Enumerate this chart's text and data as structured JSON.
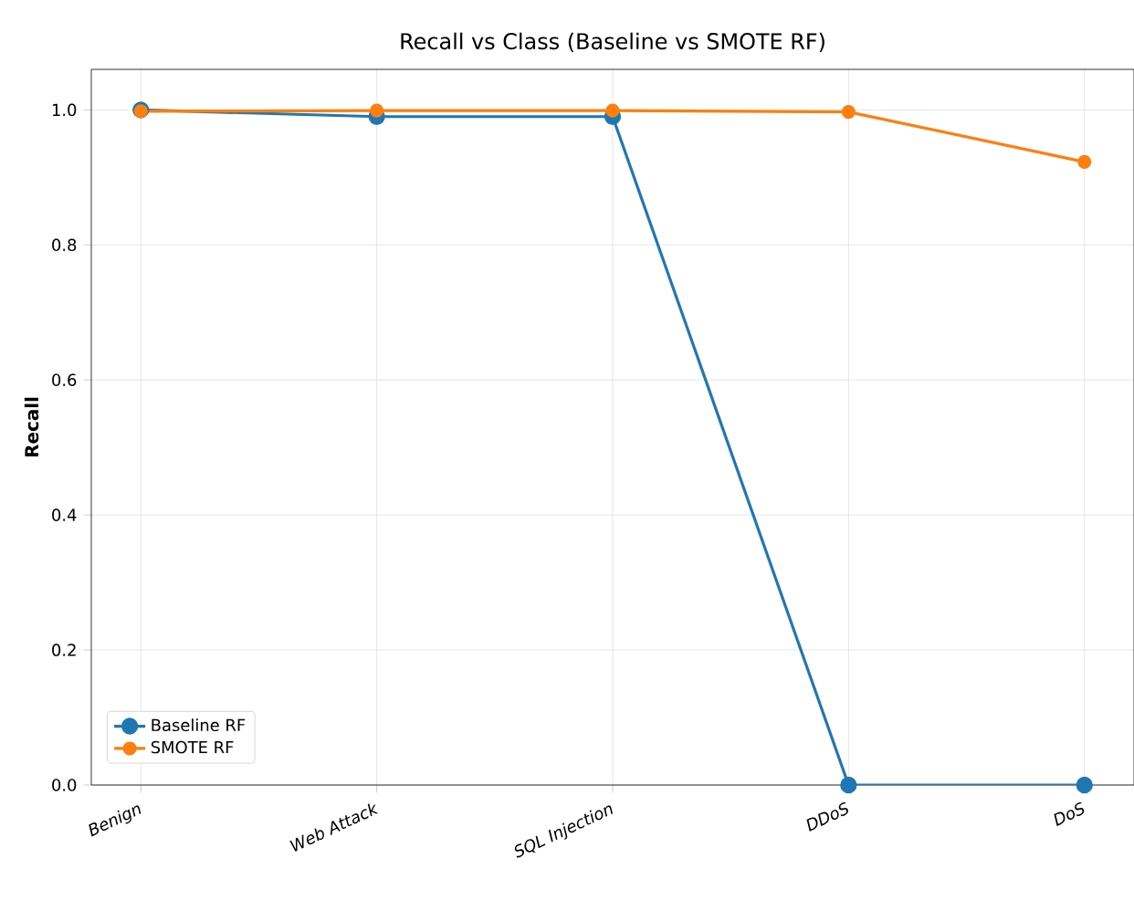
{
  "chart_data": {
    "type": "line",
    "title": "Recall vs Class (Baseline vs SMOTE RF)",
    "ylabel": "Recall",
    "categories": [
      "Benign",
      "Web Attack",
      "SQL Injection",
      "DDoS",
      "DoS"
    ],
    "series": [
      {
        "name": "Baseline RF",
        "color": "#1f77b4",
        "values": [
          1.0,
          0.99,
          0.99,
          0.0,
          0.0
        ]
      },
      {
        "name": "SMOTE RF",
        "color": "#ff7f0e",
        "values": [
          0.998,
          0.999,
          0.999,
          0.997,
          0.923
        ]
      }
    ],
    "ylim": [
      0,
      1.06
    ],
    "yticks": [
      {
        "value": 0,
        "label": "0.0"
      },
      0.2,
      0.4,
      0.6,
      0.8,
      {
        "value": 1,
        "label": "1.0"
      }
    ],
    "grid": true,
    "legend": "bottom left",
    "marker": "circle",
    "line_style": "solid"
  }
}
